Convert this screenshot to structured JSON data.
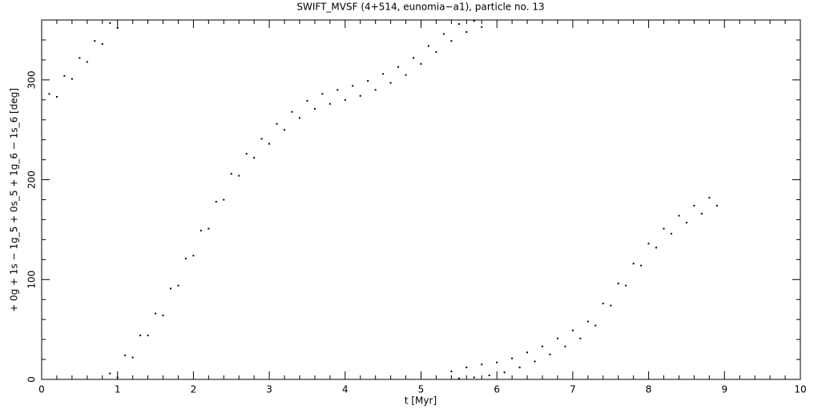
{
  "chart_data": {
    "type": "scatter",
    "title": "SWIFT_MVSF (4+514, eunomia−a1), particle no. 13",
    "x_label": "t [Myr]",
    "y_label": "+ 0g + 1s − 1g_5 + 0s_5 + 1g_6 − 1s_6 [deg]",
    "color": "#000000",
    "x": [
      0.1,
      0.2,
      0.3,
      0.4,
      0.5,
      0.6,
      0.7,
      0.8,
      0.9,
      1.0,
      0.9,
      1.0,
      1.1,
      1.2,
      1.3,
      1.4,
      1.5,
      1.6,
      1.7,
      1.8,
      1.9,
      2.0,
      2.1,
      2.2,
      2.3,
      2.4,
      2.5,
      2.6,
      2.7,
      2.8,
      2.9,
      3.0,
      3.1,
      3.2,
      3.3,
      3.4,
      3.5,
      3.6,
      3.7,
      3.8,
      3.9,
      4.0,
      4.1,
      4.2,
      4.3,
      4.4,
      4.5,
      4.6,
      4.7,
      4.8,
      4.9,
      5.0,
      5.1,
      5.2,
      5.3,
      5.4,
      5.5,
      5.6,
      5.7,
      5.8,
      5.4,
      5.5,
      5.6,
      5.7,
      5.8,
      5.9,
      6.0,
      6.1,
      6.2,
      6.3,
      6.4,
      6.5,
      6.6,
      6.7,
      6.8,
      6.9,
      7.0,
      7.1,
      7.2,
      7.3,
      7.4,
      7.5,
      7.6,
      7.7,
      7.8,
      7.9,
      8.0,
      8.1,
      8.2,
      8.3,
      8.4,
      8.5,
      8.6,
      8.7,
      8.8,
      8.9
    ],
    "values": [
      286,
      283,
      304,
      301,
      322,
      318,
      339,
      336,
      357,
      352,
      6,
      2,
      24,
      22,
      44,
      44,
      66,
      64,
      91,
      94,
      121,
      124,
      149,
      151,
      178,
      180,
      206,
      204,
      226,
      222,
      241,
      236,
      256,
      250,
      268,
      262,
      279,
      271,
      286,
      276,
      290,
      280,
      294,
      284,
      299,
      290,
      306,
      297,
      313,
      305,
      322,
      316,
      334,
      328,
      346,
      339,
      356,
      348,
      359,
      353,
      8,
      1,
      12,
      2,
      15,
      4,
      17,
      7,
      21,
      12,
      27,
      18,
      33,
      25,
      41,
      33,
      49,
      41,
      58,
      54,
      76,
      74,
      96,
      94,
      116,
      114,
      136,
      132,
      151,
      146,
      164,
      157,
      174,
      166,
      182,
      174
    ],
    "xlim": [
      0,
      10
    ],
    "xticks": [
      0,
      1,
      2,
      3,
      4,
      5,
      6,
      7,
      8,
      9,
      10
    ],
    "ylim": [
      0,
      360
    ],
    "yticks": [
      0,
      100,
      200,
      300
    ]
  }
}
